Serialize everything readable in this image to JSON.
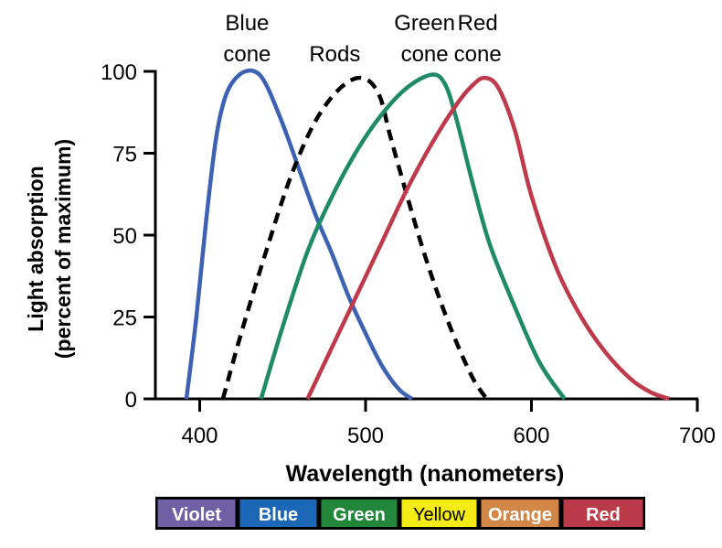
{
  "chart_data": {
    "type": "line",
    "title": "",
    "xlabel": "Wavelength (nanometers)",
    "ylabel": [
      "Light absorption",
      "(percent of maximum)"
    ],
    "xlim": [
      375,
      700
    ],
    "ylim": [
      0,
      100
    ],
    "xticks": [
      400,
      500,
      600,
      700
    ],
    "yticks": [
      0,
      25,
      50,
      75,
      100
    ],
    "grid": false,
    "series": [
      {
        "name": "Blue cone",
        "label_lines": [
          "Blue",
          "cone"
        ],
        "color": "#3d62b3",
        "dashed": false,
        "points": [
          [
            392,
            0
          ],
          [
            398,
            25
          ],
          [
            404,
            55
          ],
          [
            410,
            80
          ],
          [
            416,
            93
          ],
          [
            424,
            99
          ],
          [
            433,
            100
          ],
          [
            440,
            96
          ],
          [
            450,
            84
          ],
          [
            460,
            70
          ],
          [
            470,
            56
          ],
          [
            480,
            44
          ],
          [
            490,
            31
          ],
          [
            500,
            20
          ],
          [
            510,
            10
          ],
          [
            520,
            3
          ],
          [
            528,
            0
          ]
        ]
      },
      {
        "name": "Rods",
        "label_lines": [
          "",
          "Rods"
        ],
        "color": "#000000",
        "dashed": true,
        "points": [
          [
            414,
            0
          ],
          [
            425,
            20
          ],
          [
            440,
            45
          ],
          [
            455,
            68
          ],
          [
            470,
            85
          ],
          [
            485,
            95
          ],
          [
            498,
            98
          ],
          [
            508,
            93
          ],
          [
            515,
            80
          ],
          [
            525,
            62
          ],
          [
            535,
            45
          ],
          [
            545,
            30
          ],
          [
            555,
            17
          ],
          [
            565,
            6
          ],
          [
            573,
            0
          ]
        ]
      },
      {
        "name": "Green cone",
        "label_lines": [
          "Green",
          "cone"
        ],
        "color": "#1e8a68",
        "dashed": false,
        "points": [
          [
            437,
            0
          ],
          [
            450,
            22
          ],
          [
            465,
            45
          ],
          [
            480,
            62
          ],
          [
            495,
            76
          ],
          [
            510,
            87
          ],
          [
            525,
            95
          ],
          [
            540,
            99
          ],
          [
            548,
            96
          ],
          [
            555,
            85
          ],
          [
            565,
            65
          ],
          [
            575,
            47
          ],
          [
            590,
            28
          ],
          [
            605,
            11
          ],
          [
            620,
            0
          ]
        ]
      },
      {
        "name": "Red cone",
        "label_lines": [
          "Red",
          "cone"
        ],
        "color": "#be3a4b",
        "dashed": false,
        "points": [
          [
            465,
            0
          ],
          [
            480,
            16
          ],
          [
            495,
            32
          ],
          [
            510,
            48
          ],
          [
            525,
            64
          ],
          [
            540,
            78
          ],
          [
            555,
            90
          ],
          [
            565,
            96
          ],
          [
            572,
            98
          ],
          [
            580,
            95
          ],
          [
            590,
            82
          ],
          [
            600,
            62
          ],
          [
            615,
            40
          ],
          [
            630,
            25
          ],
          [
            645,
            14
          ],
          [
            660,
            6
          ],
          [
            672,
            2
          ],
          [
            683,
            0
          ]
        ]
      }
    ],
    "spectrum_bar": [
      {
        "label": "Violet",
        "bg": "#7160a6",
        "fg": "#ffffff"
      },
      {
        "label": "Blue",
        "bg": "#1c67b8",
        "fg": "#ffffff"
      },
      {
        "label": "Green",
        "bg": "#22873a",
        "fg": "#ffffff"
      },
      {
        "label": "Yellow",
        "bg": "#f5ec15",
        "fg": "#000000"
      },
      {
        "label": "Orange",
        "bg": "#d38747",
        "fg": "#ffffff"
      },
      {
        "label": "Red",
        "bg": "#bb3a4a",
        "fg": "#ffffff"
      }
    ]
  }
}
